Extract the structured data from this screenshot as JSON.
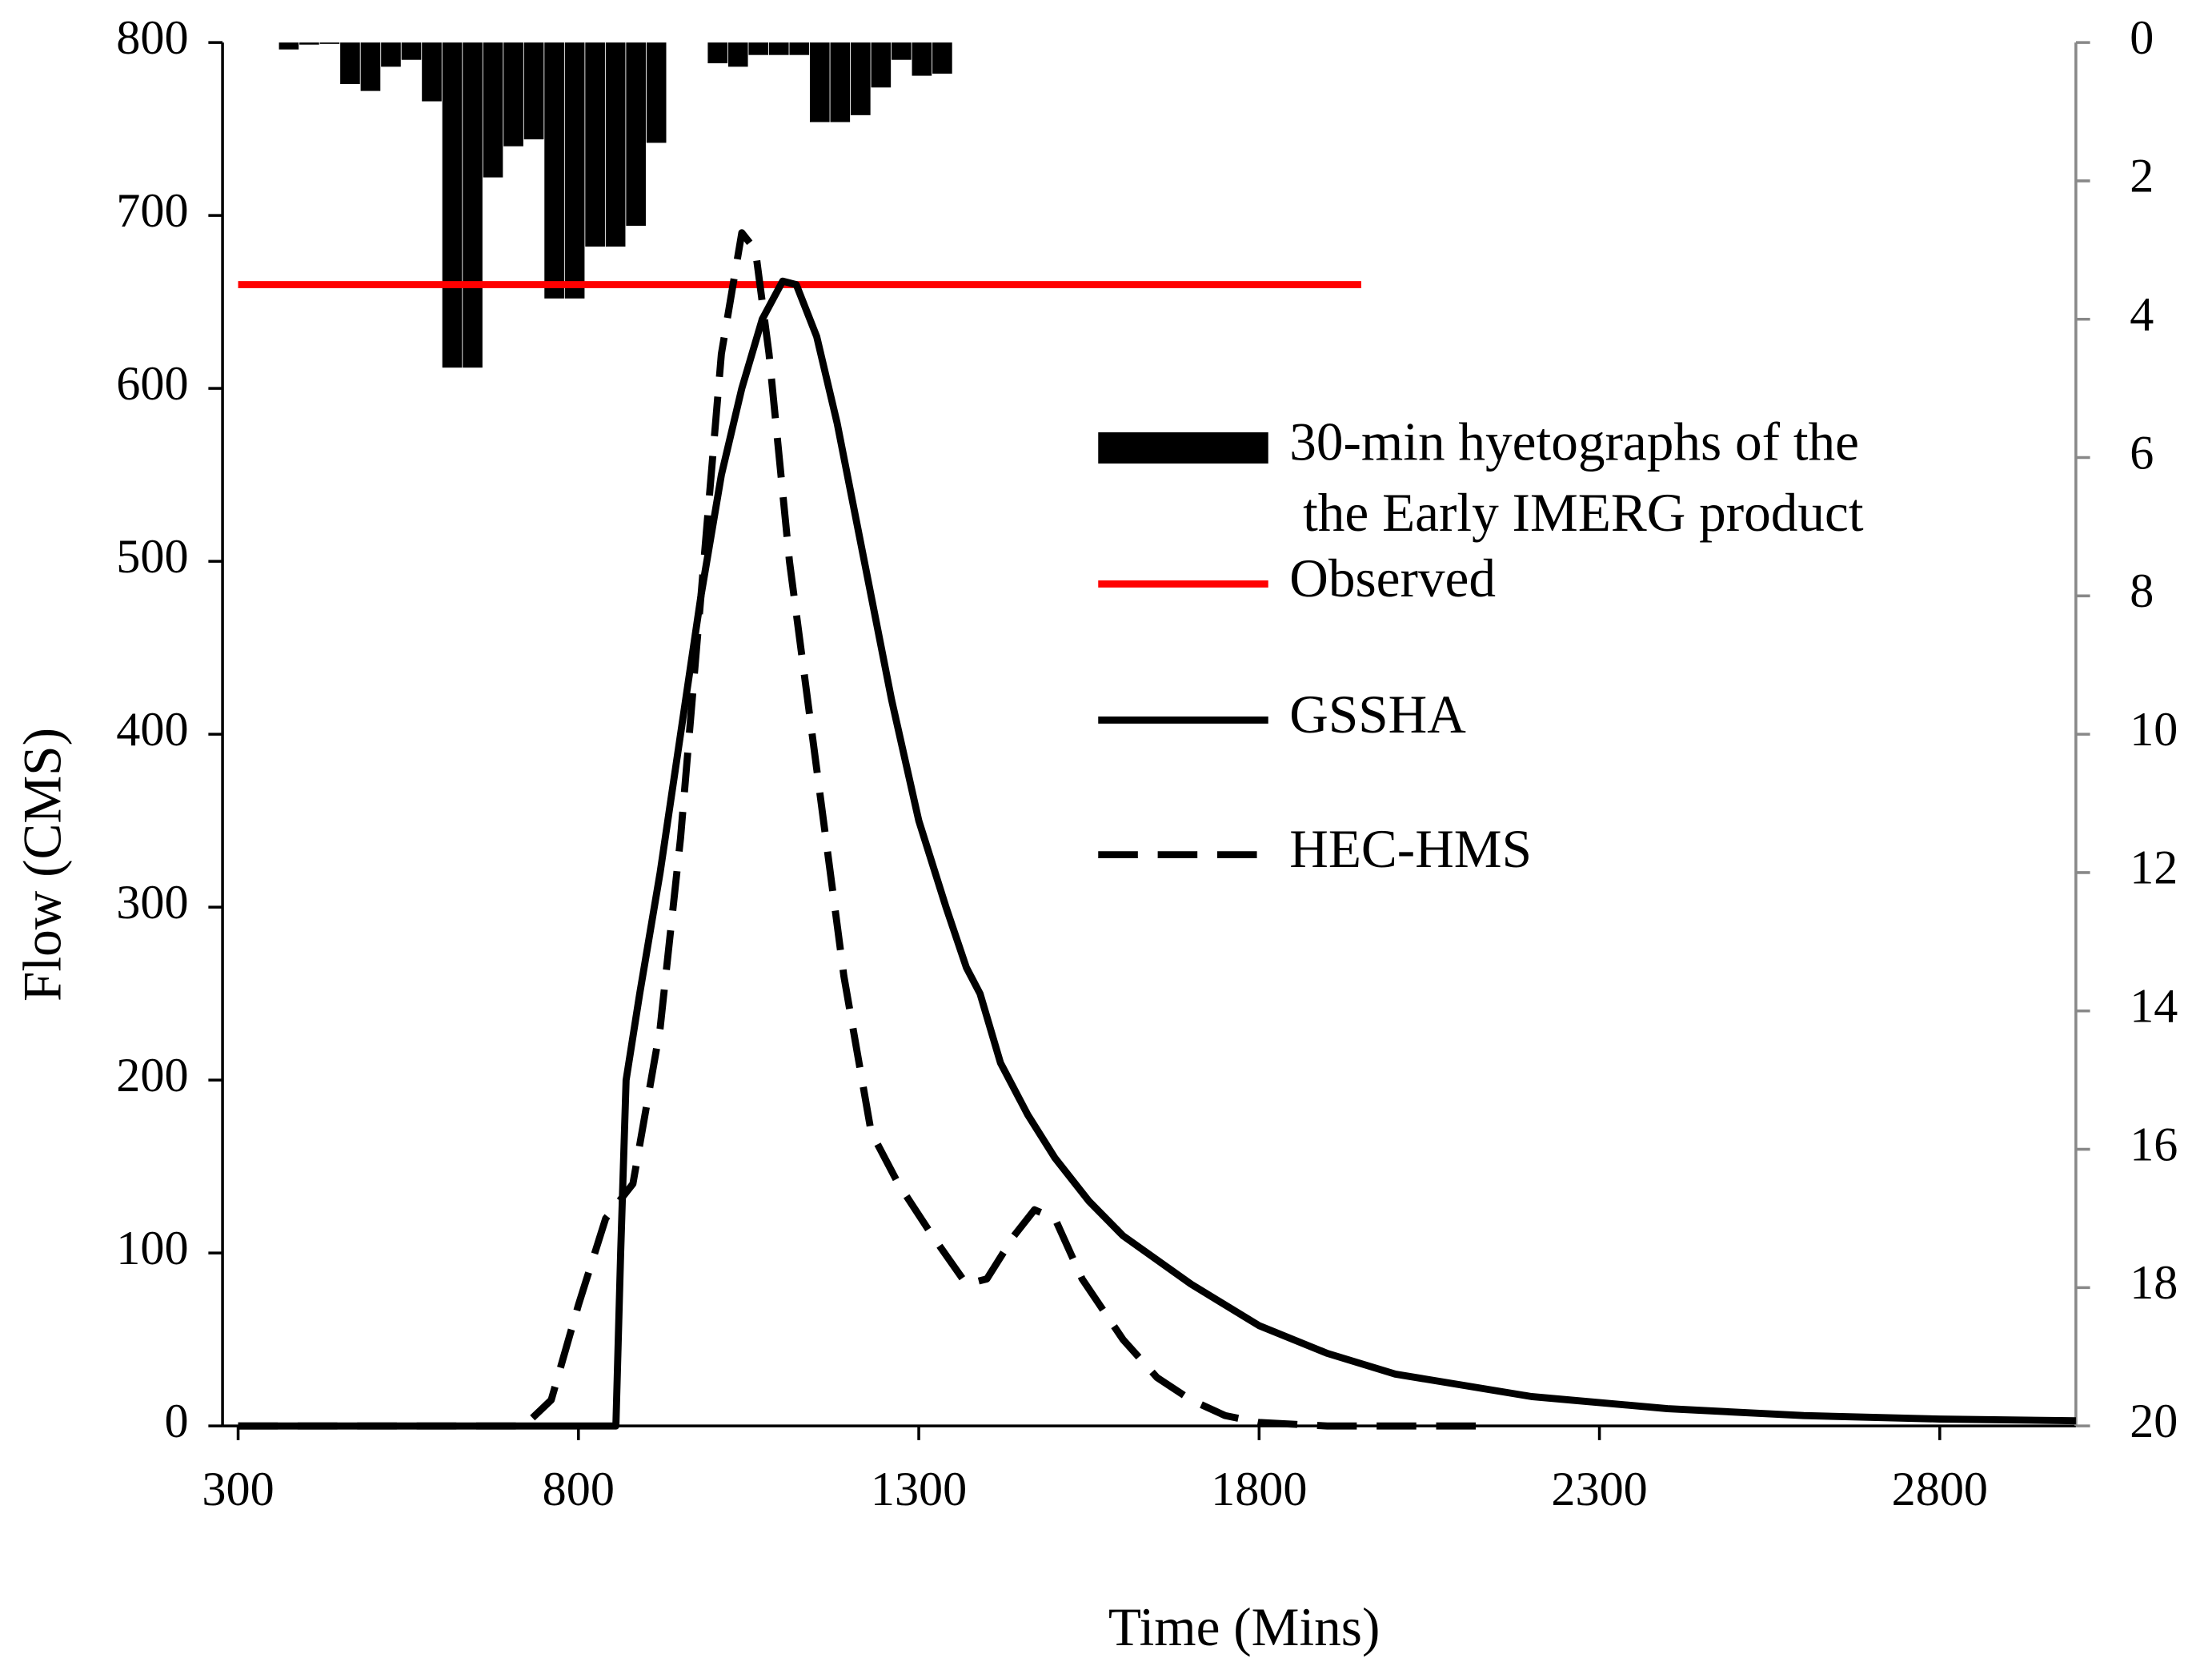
{
  "chart_data": {
    "type": "line",
    "xlabel": "Time (Mins)",
    "ylabel": "Flow (CMS)",
    "xlim": [
      300,
      3000
    ],
    "xticks": [
      300,
      800,
      1300,
      1800,
      2300,
      2800
    ],
    "ylim": [
      0,
      800
    ],
    "yticks": [
      0,
      100,
      200,
      300,
      400,
      500,
      600,
      700,
      800
    ],
    "y2lim": [
      0,
      20
    ],
    "y2ticks": [
      0,
      2,
      4,
      6,
      8,
      10,
      12,
      14,
      16,
      18,
      20
    ],
    "y2_inverted": true,
    "series": [
      {
        "name": "30-min hyetographs of the\nthe Early IMERG product",
        "type": "bar",
        "axis": "y2",
        "color": "#000000",
        "x": [
          360,
          390,
          420,
          450,
          480,
          510,
          540,
          570,
          600,
          630,
          660,
          690,
          720,
          750,
          780,
          810,
          840,
          870,
          900,
          930,
          960,
          990,
          1020,
          1050,
          1080,
          1110,
          1140,
          1170,
          1200,
          1230,
          1260,
          1290,
          1320
        ],
        "values": [
          0.1,
          0.03,
          0.02,
          0.6,
          0.7,
          0.35,
          0.25,
          0.85,
          4.7,
          4.7,
          1.95,
          1.5,
          1.4,
          3.7,
          3.7,
          2.95,
          2.95,
          2.65,
          1.45,
          0,
          0,
          0.3,
          0.35,
          0.18,
          0.18,
          0.18,
          1.15,
          1.15,
          1.05,
          0.65,
          0.25,
          0.48,
          0.45
        ]
      },
      {
        "name": "Observed",
        "type": "line",
        "color": "#ff0000",
        "dash": "solid",
        "x": [
          300,
          1950
        ],
        "values": [
          660,
          660
        ]
      },
      {
        "name": "GSSHA",
        "type": "line",
        "color": "#000000",
        "dash": "solid",
        "x": [
          300,
          855,
          862,
          870,
          890,
          920,
          950,
          980,
          1010,
          1040,
          1070,
          1100,
          1120,
          1150,
          1180,
          1220,
          1260,
          1300,
          1340,
          1370,
          1390,
          1420,
          1460,
          1500,
          1550,
          1600,
          1700,
          1800,
          1900,
          2000,
          2200,
          2400,
          2600,
          2800,
          3000
        ],
        "values": [
          0,
          0,
          100,
          200,
          250,
          320,
          400,
          480,
          550,
          600,
          640,
          662,
          660,
          630,
          580,
          500,
          420,
          350,
          300,
          265,
          250,
          210,
          180,
          155,
          130,
          110,
          82,
          58,
          42,
          30,
          17,
          10,
          6,
          4,
          3
        ]
      },
      {
        "name": "HEC-HMS",
        "type": "line",
        "color": "#000000",
        "dash": "dashed",
        "x": [
          300,
          720,
          760,
          800,
          840,
          880,
          920,
          950,
          980,
          1010,
          1040,
          1060,
          1080,
          1110,
          1150,
          1190,
          1230,
          1270,
          1320,
          1370,
          1400,
          1440,
          1470,
          1500,
          1540,
          1600,
          1650,
          1700,
          1750,
          1800,
          1900,
          2130
        ],
        "values": [
          0,
          0,
          15,
          70,
          120,
          140,
          230,
          340,
          480,
          620,
          690,
          680,
          620,
          500,
          380,
          260,
          170,
          140,
          110,
          82,
          85,
          110,
          125,
          120,
          85,
          50,
          28,
          15,
          6,
          2,
          0,
          0
        ]
      }
    ]
  }
}
